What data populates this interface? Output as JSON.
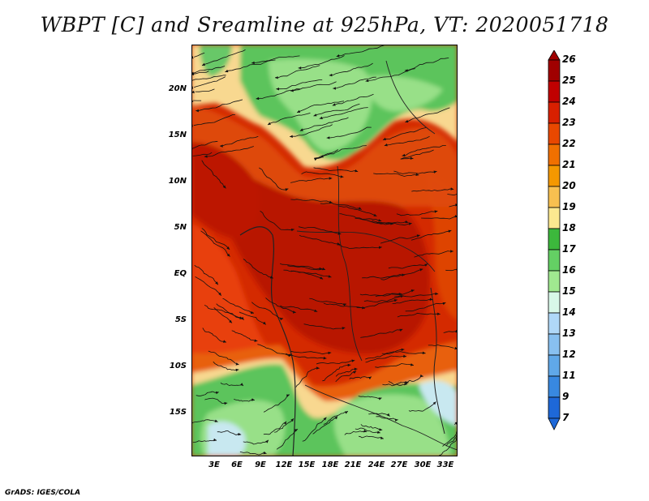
{
  "title": "WBPT [C] and Sreamline at 925hPa, VT: 2020051718",
  "credit": "GrADS: IGES/COLA",
  "latitude_labels": [
    "20N",
    "15N",
    "10N",
    "5N",
    "EQ",
    "5S",
    "10S",
    "15S"
  ],
  "longitude_labels": [
    "3E",
    "6E",
    "9E",
    "12E",
    "15E",
    "18E",
    "21E",
    "24E",
    "27E",
    "30E",
    "33E"
  ],
  "colorbar": {
    "levels": [
      "26",
      "25",
      "24",
      "23",
      "22",
      "21",
      "20",
      "19",
      "18",
      "17",
      "16",
      "15",
      "14",
      "13",
      "12",
      "11",
      "9",
      "7"
    ],
    "colors": [
      "#a00000",
      "#c00000",
      "#d82000",
      "#e84800",
      "#f07000",
      "#f49800",
      "#f8c050",
      "#fce890",
      "#3cb83c",
      "#64d064",
      "#a0e890",
      "#d8f8e8",
      "#b0d8f8",
      "#88c0f0",
      "#60a8e8",
      "#3888e0",
      "#1e68d8"
    ]
  },
  "colors": {
    "deep_red": "#b81800",
    "red": "#d83000",
    "orange": "#e86810",
    "light_orange": "#f0a040",
    "yellow": "#f8e098",
    "dark_green": "#40b040",
    "green": "#68c868",
    "light_green": "#98e088",
    "pale_blue": "#c8e8f0"
  }
}
